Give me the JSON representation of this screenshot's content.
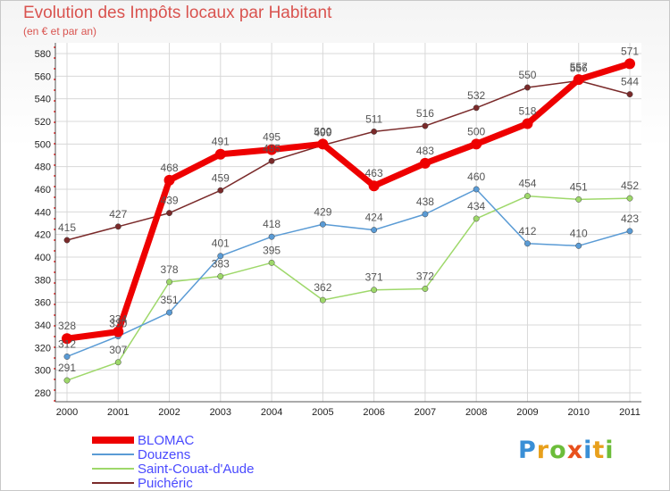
{
  "header": {
    "title": "Evolution des Impôts locaux par Habitant",
    "subtitle": "(en € et par an)"
  },
  "logo": {
    "text": "Proxiti",
    "letters": [
      {
        "ch": "P",
        "color": "#3a8fd6"
      },
      {
        "ch": "r",
        "color": "#e8a01c"
      },
      {
        "ch": "o",
        "color": "#6cbd3a"
      },
      {
        "ch": "x",
        "color": "#e8501c"
      },
      {
        "ch": "i",
        "color": "#3a8fd6"
      },
      {
        "ch": "t",
        "color": "#e8a01c"
      },
      {
        "ch": "i",
        "color": "#6cbd3a"
      }
    ]
  },
  "chart_data": {
    "type": "line",
    "title": "Evolution des Impôts locaux par Habitant",
    "subtitle": "(en € et par an)",
    "xlabel": "",
    "ylabel": "",
    "categories": [
      "2000",
      "2001",
      "2002",
      "2003",
      "2004",
      "2005",
      "2006",
      "2007",
      "2008",
      "2009",
      "2010",
      "2011"
    ],
    "ylim": [
      280,
      580
    ],
    "yticks": [
      280,
      300,
      320,
      340,
      360,
      380,
      400,
      420,
      440,
      460,
      480,
      500,
      520,
      540,
      560,
      580
    ],
    "grid": true,
    "legend_position": "bottom",
    "series": [
      {
        "name": "Puichéric",
        "color": "#7a2a2a",
        "width": "thin",
        "values": [
          415,
          427,
          439,
          459,
          485,
          499,
          511,
          516,
          532,
          550,
          556,
          544
        ],
        "labels": [
          "415",
          "427",
          "439",
          "459",
          "485",
          "499",
          "511",
          "516",
          "532",
          "550",
          "556",
          "544"
        ]
      },
      {
        "name": "Saint-Couat-d'Aude",
        "color": "#9ed86a",
        "width": "thin",
        "values": [
          291,
          307,
          378,
          383,
          395,
          362,
          371,
          372,
          434,
          454,
          451,
          452
        ],
        "labels": [
          "291",
          "307",
          "378",
          "383",
          "395",
          "362",
          "371",
          "372",
          "434",
          "454",
          "451",
          "452"
        ]
      },
      {
        "name": "Douzens",
        "color": "#5a9bd5",
        "width": "thin",
        "values": [
          312,
          330,
          351,
          401,
          418,
          429,
          424,
          438,
          460,
          412,
          410,
          423
        ],
        "labels": [
          "312",
          "330",
          "351",
          "401",
          "418",
          "429",
          "424",
          "438",
          "460",
          "412",
          "410",
          "423"
        ]
      },
      {
        "name": "BLOMAC",
        "color": "#ee0000",
        "width": "thick",
        "values": [
          328,
          334,
          468,
          491,
          495,
          500,
          463,
          483,
          500,
          518,
          557,
          571
        ],
        "labels": [
          "328",
          "334",
          "468",
          "491",
          "495",
          "500",
          "463",
          "483",
          "500",
          "518",
          "557",
          "571"
        ]
      }
    ],
    "legend": [
      "BLOMAC",
      "Douzens",
      "Saint-Couat-d'Aude",
      "Puichéric"
    ]
  }
}
